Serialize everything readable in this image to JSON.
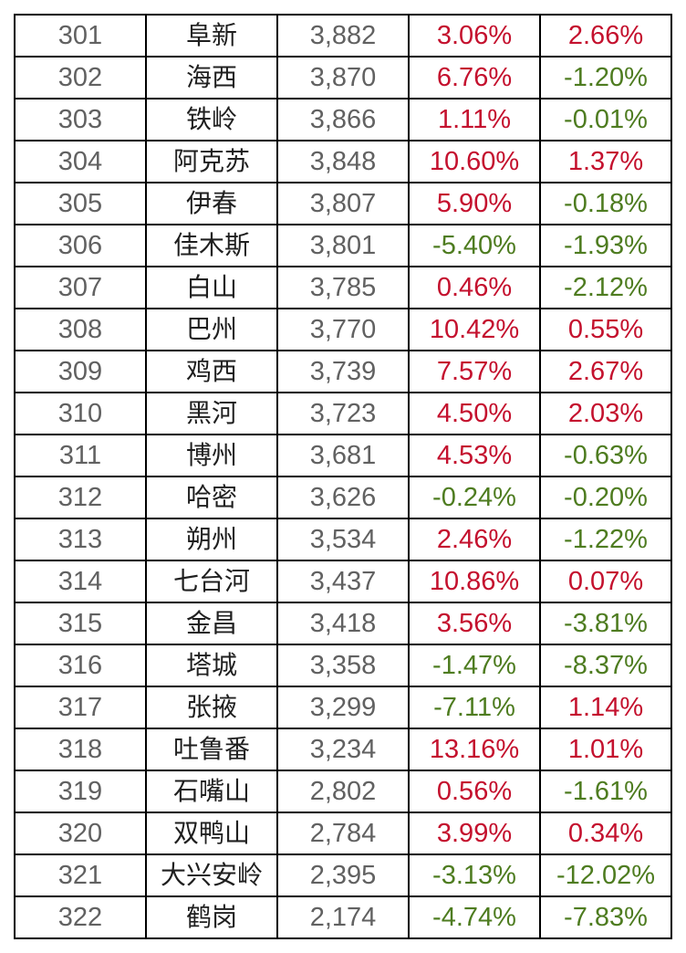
{
  "colors": {
    "grid_line": "#000000",
    "cell_background": "#ffffff",
    "rank_text": "#616161",
    "city_text": "#1f1f1f",
    "price_text": "#616161",
    "positive_pct": "#c4112e",
    "negative_pct": "#4e7c20"
  },
  "chart_data": {
    "type": "table",
    "title": "",
    "columns": [
      "rank",
      "city",
      "price",
      "pct1",
      "pct2"
    ],
    "rows": [
      {
        "rank": "301",
        "city": "阜新",
        "price": "3,882",
        "pct1": "3.06%",
        "pct2": "2.66%"
      },
      {
        "rank": "302",
        "city": "海西",
        "price": "3,870",
        "pct1": "6.76%",
        "pct2": "-1.20%"
      },
      {
        "rank": "303",
        "city": "铁岭",
        "price": "3,866",
        "pct1": "1.11%",
        "pct2": "-0.01%"
      },
      {
        "rank": "304",
        "city": "阿克苏",
        "price": "3,848",
        "pct1": "10.60%",
        "pct2": "1.37%"
      },
      {
        "rank": "305",
        "city": "伊春",
        "price": "3,807",
        "pct1": "5.90%",
        "pct2": "-0.18%"
      },
      {
        "rank": "306",
        "city": "佳木斯",
        "price": "3,801",
        "pct1": "-5.40%",
        "pct2": "-1.93%"
      },
      {
        "rank": "307",
        "city": "白山",
        "price": "3,785",
        "pct1": "0.46%",
        "pct2": "-2.12%"
      },
      {
        "rank": "308",
        "city": "巴州",
        "price": "3,770",
        "pct1": "10.42%",
        "pct2": "0.55%"
      },
      {
        "rank": "309",
        "city": "鸡西",
        "price": "3,739",
        "pct1": "7.57%",
        "pct2": "2.67%"
      },
      {
        "rank": "310",
        "city": "黑河",
        "price": "3,723",
        "pct1": "4.50%",
        "pct2": "2.03%"
      },
      {
        "rank": "311",
        "city": "博州",
        "price": "3,681",
        "pct1": "4.53%",
        "pct2": "-0.63%"
      },
      {
        "rank": "312",
        "city": "哈密",
        "price": "3,626",
        "pct1": "-0.24%",
        "pct2": "-0.20%"
      },
      {
        "rank": "313",
        "city": "朔州",
        "price": "3,534",
        "pct1": "2.46%",
        "pct2": "-1.22%"
      },
      {
        "rank": "314",
        "city": "七台河",
        "price": "3,437",
        "pct1": "10.86%",
        "pct2": "0.07%"
      },
      {
        "rank": "315",
        "city": "金昌",
        "price": "3,418",
        "pct1": "3.56%",
        "pct2": "-3.81%"
      },
      {
        "rank": "316",
        "city": "塔城",
        "price": "3,358",
        "pct1": "-1.47%",
        "pct2": "-8.37%"
      },
      {
        "rank": "317",
        "city": "张掖",
        "price": "3,299",
        "pct1": "-7.11%",
        "pct2": "1.14%"
      },
      {
        "rank": "318",
        "city": "吐鲁番",
        "price": "3,234",
        "pct1": "13.16%",
        "pct2": "1.01%"
      },
      {
        "rank": "319",
        "city": "石嘴山",
        "price": "2,802",
        "pct1": "0.56%",
        "pct2": "-1.61%"
      },
      {
        "rank": "320",
        "city": "双鸭山",
        "price": "2,784",
        "pct1": "3.99%",
        "pct2": "0.34%"
      },
      {
        "rank": "321",
        "city": "大兴安岭",
        "price": "2,395",
        "pct1": "-3.13%",
        "pct2": "-12.02%"
      },
      {
        "rank": "322",
        "city": "鹤岗",
        "price": "2,174",
        "pct1": "-4.74%",
        "pct2": "-7.83%"
      }
    ]
  }
}
